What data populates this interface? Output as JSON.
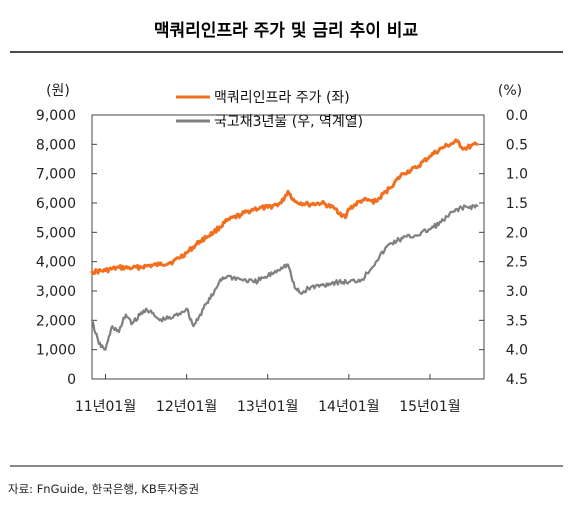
{
  "title": "맥쿼리인프라 주가 및 금리 추이 비교",
  "source": "자료: FnGuide, 한국은행, KB투자증권",
  "colors": {
    "stock": "#F07020",
    "bond": "#808080",
    "title_rule": "#111111",
    "frame": "#444444"
  },
  "chart_data": {
    "type": "line",
    "title": "맥쿼리인프라 주가 및 금리 추이 비교",
    "x_ticks": [
      "11년01월",
      "12년01월",
      "13년01월",
      "14년01월",
      "15년01월"
    ],
    "x_range": [
      -2,
      56
    ],
    "x_unit": "months since 2011-01 (tick positions 0,12,24,36,48)",
    "left_axis": {
      "unit_label": "(원)",
      "min": 0,
      "max": 9000,
      "ticks": [
        "0",
        "1,000",
        "2,000",
        "3,000",
        "4,000",
        "5,000",
        "6,000",
        "7,000",
        "8,000",
        "9,000"
      ]
    },
    "right_axis": {
      "unit_label": "(%)",
      "min": 0.0,
      "max": 4.5,
      "inverted": true,
      "ticks": [
        "0.0",
        "0.5",
        "1.0",
        "1.5",
        "2.0",
        "2.5",
        "3.0",
        "3.5",
        "4.0",
        "4.5"
      ]
    },
    "legend_position": "top",
    "grid": false,
    "series": [
      {
        "name": "맥쿼리인프라 주가 (좌)",
        "axis": "left",
        "color": "#F07020",
        "x": [
          -2,
          0,
          2,
          4,
          6,
          8,
          10,
          12,
          14,
          16,
          18,
          20,
          22,
          24,
          26,
          27,
          28,
          30,
          32,
          34,
          35.5,
          36,
          38,
          40,
          42,
          44,
          46,
          48,
          50,
          52,
          53,
          55
        ],
        "y": [
          3650,
          3700,
          3800,
          3780,
          3850,
          3900,
          4000,
          4300,
          4700,
          5000,
          5400,
          5600,
          5800,
          5850,
          6000,
          6400,
          6050,
          5950,
          6000,
          5800,
          5500,
          5800,
          6100,
          6050,
          6500,
          7000,
          7200,
          7600,
          7900,
          8100,
          7850,
          8000
        ]
      },
      {
        "name": "국고채3년물 (우, 역계열)",
        "axis": "right",
        "color": "#808080",
        "x": [
          -2,
          -1,
          0,
          1,
          2,
          3,
          4,
          6,
          8,
          10,
          12,
          13,
          14,
          15,
          16,
          17,
          18,
          20,
          22,
          24,
          26,
          27,
          28,
          29,
          30,
          32,
          34,
          36,
          38,
          40,
          42,
          44,
          46,
          48,
          50,
          52,
          55
        ],
        "y": [
          3.5,
          3.9,
          4.0,
          3.6,
          3.7,
          3.4,
          3.55,
          3.3,
          3.5,
          3.45,
          3.3,
          3.6,
          3.4,
          3.2,
          3.05,
          2.8,
          2.75,
          2.8,
          2.85,
          2.75,
          2.6,
          2.55,
          2.95,
          3.05,
          2.95,
          2.9,
          2.85,
          2.85,
          2.8,
          2.5,
          2.2,
          2.1,
          2.05,
          1.95,
          1.8,
          1.6,
          1.55
        ]
      }
    ]
  }
}
